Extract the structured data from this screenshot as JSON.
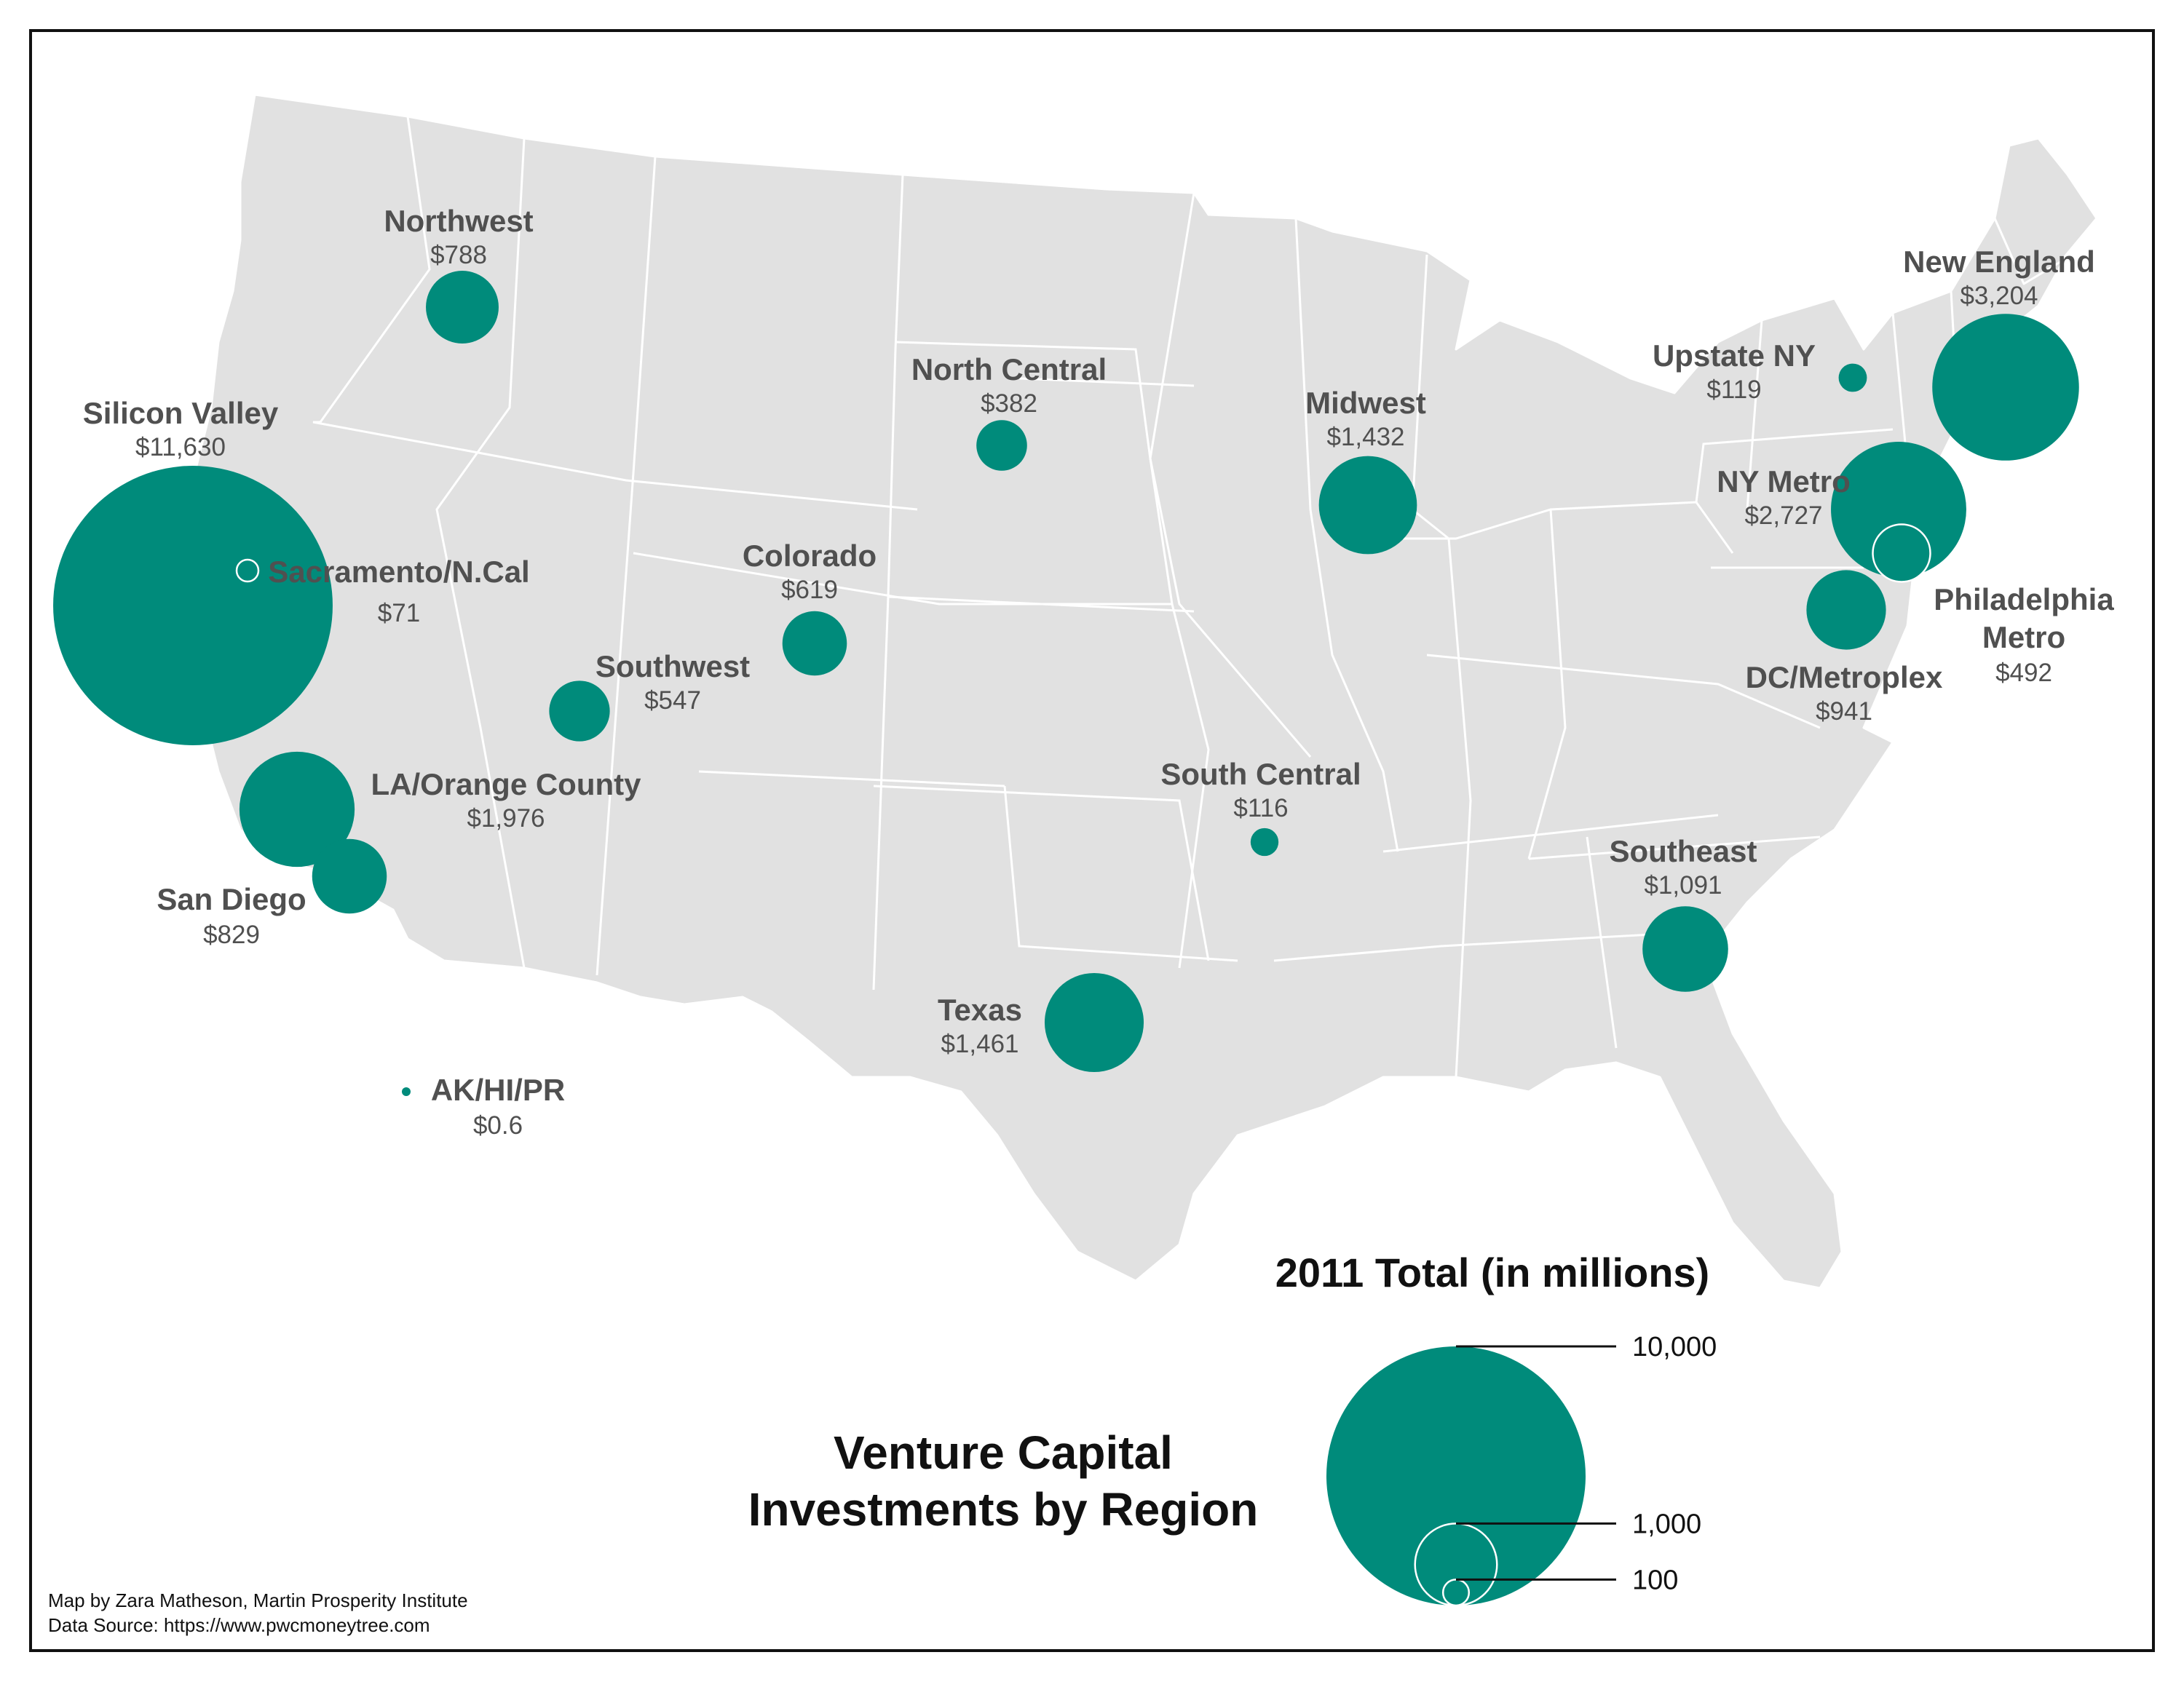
{
  "title_lines": [
    "Venture Capital",
    "Investments by Region"
  ],
  "legend": {
    "title": "2011 Total (in millions)",
    "items": [
      {
        "label": "10,000",
        "value": 10000
      },
      {
        "label": "1,000",
        "value": 1000
      },
      {
        "label": "100",
        "value": 100
      }
    ]
  },
  "credits": {
    "author": "Map by Zara Matheson, Martin Prosperity Institute",
    "source": "Data Source: https://www.pwcmoneytree.com"
  },
  "colors": {
    "bubble": "#008b7b",
    "land": "#e1e1e1",
    "border": "#ffffff",
    "label": "#505050"
  },
  "regions": [
    {
      "name": "Silicon Valley",
      "value_label": "$11,630",
      "value": 11630
    },
    {
      "name": "Sacramento/N.Cal",
      "value_label": "$71",
      "value": 71
    },
    {
      "name": "Northwest",
      "value_label": "$788",
      "value": 788
    },
    {
      "name": "LA/Orange County",
      "value_label": "$1,976",
      "value": 1976
    },
    {
      "name": "San Diego",
      "value_label": "$829",
      "value": 829
    },
    {
      "name": "Southwest",
      "value_label": "$547",
      "value": 547
    },
    {
      "name": "Colorado",
      "value_label": "$619",
      "value": 619
    },
    {
      "name": "North Central",
      "value_label": "$382",
      "value": 382
    },
    {
      "name": "Midwest",
      "value_label": "$1,432",
      "value": 1432
    },
    {
      "name": "South Central",
      "value_label": "$116",
      "value": 116
    },
    {
      "name": "Texas",
      "value_label": "$1,461",
      "value": 1461
    },
    {
      "name": "Southeast",
      "value_label": "$1,091",
      "value": 1091
    },
    {
      "name": "Upstate NY",
      "value_label": "$119",
      "value": 119
    },
    {
      "name": "New England",
      "value_label": "$3,204",
      "value": 3204
    },
    {
      "name": "NY Metro",
      "value_label": "$2,727",
      "value": 2727
    },
    {
      "name": "Philadelphia Metro",
      "value_label": "$492",
      "value": 492
    },
    {
      "name": "DC/Metroplex",
      "value_label": "$941",
      "value": 941
    },
    {
      "name": "AK/HI/PR",
      "value_label": "$0.6",
      "value": 0.6
    }
  ]
}
